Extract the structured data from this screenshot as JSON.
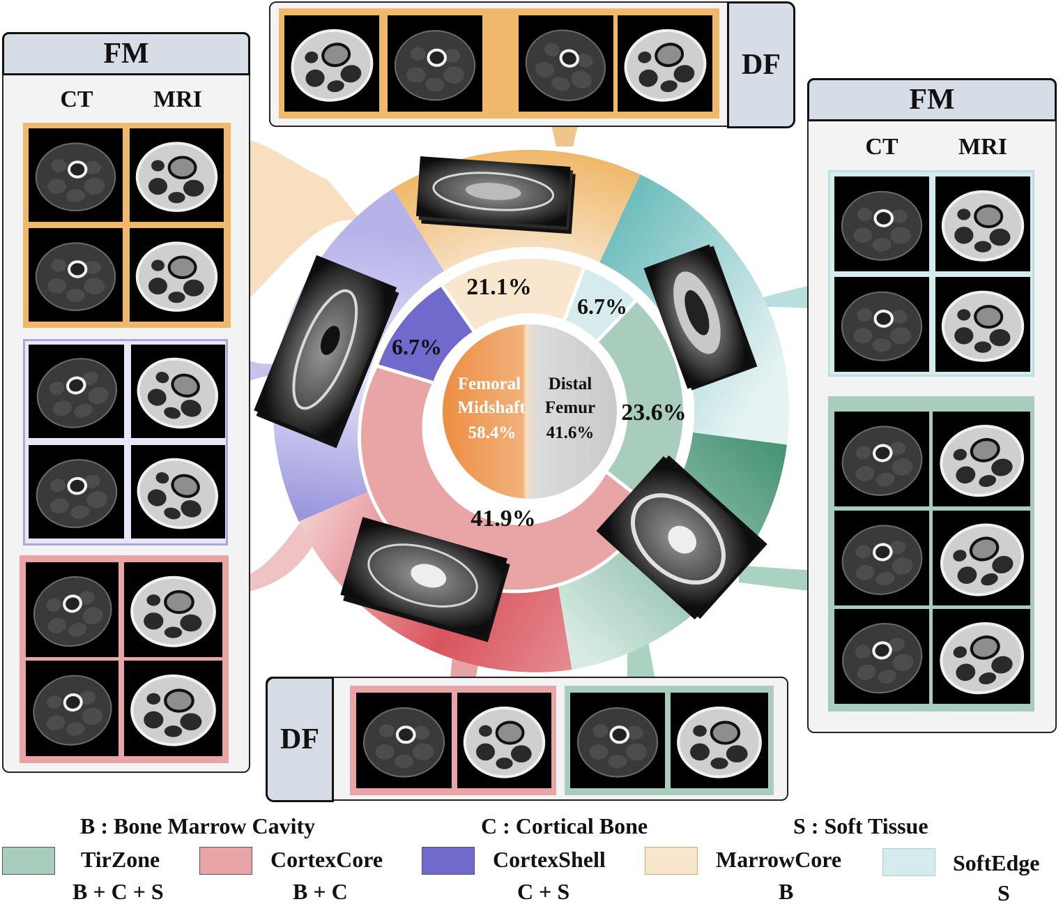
{
  "colors": {
    "marrowcore": "#efb86a",
    "marrowcore_light": "#f8e6cf",
    "softedge": "#7fc6c6",
    "softedge_light": "#d6ecec",
    "tirzone": "#3f8f70",
    "tirzone_light": "#a8cdbd",
    "cortexcore": "#d9545d",
    "cortexcore_light": "#e9a4a6",
    "cortexshell": "#a9a6e2",
    "cortexshell_dark": "#6f6acc"
  },
  "panels": {
    "left_fm": {
      "title": "FM",
      "col_ct": "CT",
      "col_mri": "MRI"
    },
    "right_fm": {
      "title": "FM",
      "col_ct": "CT",
      "col_mri": "MRI"
    },
    "top_df": {
      "title": "DF"
    },
    "bottom_df": {
      "title": "DF"
    }
  },
  "donut": {
    "center_left": {
      "line1": "Femoral",
      "line2": "Midshaft",
      "value": "58.4%"
    },
    "center_right": {
      "line1": "Distal",
      "line2": "Femur",
      "value": "41.6%"
    },
    "segments": [
      {
        "name": "MarrowCore",
        "value": "21.1%"
      },
      {
        "name": "SoftEdge",
        "value": "6.7%"
      },
      {
        "name": "TirZone",
        "value": "23.6%"
      },
      {
        "name": "CortexCore",
        "value": "41.9%"
      },
      {
        "name": "CortexShell",
        "value": "6.7%"
      }
    ]
  },
  "legend": {
    "abbrev": [
      {
        "key": "B",
        "text": "B : Bone Marrow Cavity"
      },
      {
        "key": "C",
        "text": "C : Cortical Bone"
      },
      {
        "key": "S",
        "text": "S  : Soft Tissue"
      }
    ],
    "items": [
      {
        "name": "TirZone",
        "formula": "B + C + S",
        "color": "#a8cdbd"
      },
      {
        "name": "CortexCore",
        "formula": "B + C",
        "color": "#e9a4a6"
      },
      {
        "name": "CortexShell",
        "formula": "C + S",
        "color": "#6f6acc"
      },
      {
        "name": "MarrowCore",
        "formula": "B",
        "color": "#f8e6cf"
      },
      {
        "name": "SoftEdge",
        "formula": "S",
        "color": "#d6ecec"
      }
    ]
  }
}
